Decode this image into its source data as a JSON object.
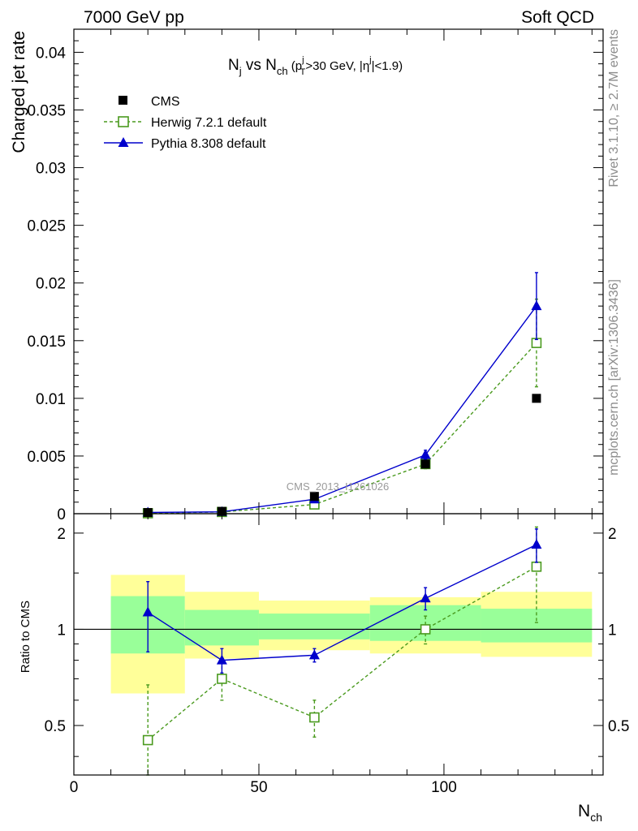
{
  "header": {
    "energy_label": "7000 GeV pp",
    "process_label": "Soft QCD"
  },
  "side_labels": {
    "rivet": "Rivet 3.1.10, ≥ 2.7M events",
    "mcplots": "mcplots.cern.ch [arXiv:1306.3436]"
  },
  "watermark": "CMS_2013_I1261026",
  "colors": {
    "cms": "#000000",
    "herwig": "#4a9a1e",
    "pythia": "#0000cc",
    "band_inner": "#99ff99",
    "band_outer": "#ffff99"
  },
  "chart_data": [
    {
      "type": "scatter",
      "title_parts": {
        "main_a": "N",
        "main_a_sub": "j",
        "main_b": " vs N",
        "main_b_sub": "ch",
        "cut_p": " (p",
        "cut_p_sup": "j",
        "cut_p_sub": "T",
        "cut_p_rest": ">30 GeV, |η",
        "cut_eta_sup": "j",
        "cut_eta_rest": "|<1.9)"
      },
      "ylabel": "Charged jet rate",
      "xlim": [
        0,
        143
      ],
      "ylim": [
        0,
        0.042
      ],
      "y_ticks": [
        "0",
        "0.005",
        "0.01",
        "0.015",
        "0.02",
        "0.025",
        "0.03",
        "0.035",
        "0.04"
      ],
      "y_tick_values": [
        0,
        0.005,
        0.01,
        0.015,
        0.02,
        0.025,
        0.03,
        0.035,
        0.04
      ],
      "legend_position": "top-left",
      "series": [
        {
          "name": "CMS",
          "style": "square-filled",
          "x": [
            20,
            40,
            65,
            95,
            125
          ],
          "y": [
            0.0001,
            0.0002,
            0.0015,
            0.0043,
            0.01
          ],
          "err": [
            0,
            0,
            0,
            0,
            0
          ]
        },
        {
          "name": "Herwig 7.2.1 default",
          "style": "square-open-dashed",
          "x": [
            20,
            40,
            65,
            95,
            125
          ],
          "y": [
            4e-05,
            0.00015,
            0.0008,
            0.0043,
            0.0148
          ],
          "err": [
            2e-05,
            3e-05,
            0.0001,
            0.0004,
            0.0038
          ]
        },
        {
          "name": "Pythia 8.308 default",
          "style": "triangle-solid",
          "x": [
            20,
            40,
            65,
            95,
            125
          ],
          "y": [
            0.00011,
            0.00016,
            0.00125,
            0.0051,
            0.018
          ],
          "err": [
            3e-05,
            3e-05,
            7e-05,
            0.0004,
            0.0029
          ]
        }
      ]
    },
    {
      "type": "scatter",
      "ylabel": "Ratio to CMS",
      "xlabel_main": "N",
      "xlabel_sub": "ch",
      "xlim": [
        0,
        143
      ],
      "ylim": [
        0.35,
        2.3
      ],
      "y_ticks": [
        "0.5",
        "1",
        "2"
      ],
      "y_tick_values": [
        0.5,
        1,
        2
      ],
      "x_ticks": [
        "0",
        "50",
        "100"
      ],
      "x_tick_values": [
        0,
        50,
        100
      ],
      "reference_line": 1,
      "bands": [
        {
          "x0": 10,
          "x1": 30,
          "outer": [
            0.63,
            1.48
          ],
          "inner": [
            0.84,
            1.27
          ]
        },
        {
          "x0": 30,
          "x1": 50,
          "outer": [
            0.81,
            1.31
          ],
          "inner": [
            0.89,
            1.15
          ]
        },
        {
          "x0": 50,
          "x1": 80,
          "outer": [
            0.86,
            1.23
          ],
          "inner": [
            0.93,
            1.12
          ]
        },
        {
          "x0": 80,
          "x1": 110,
          "outer": [
            0.84,
            1.26
          ],
          "inner": [
            0.92,
            1.19
          ]
        },
        {
          "x0": 110,
          "x1": 140,
          "outer": [
            0.82,
            1.31
          ],
          "inner": [
            0.91,
            1.16
          ]
        }
      ],
      "series": [
        {
          "name": "Herwig 7.2.1 default",
          "style": "square-open-dashed",
          "x": [
            20,
            40,
            65,
            95,
            125
          ],
          "y": [
            0.45,
            0.7,
            0.53,
            1.0,
            1.57
          ],
          "err": [
            0.22,
            0.1,
            0.07,
            0.1,
            0.52
          ]
        },
        {
          "name": "Pythia 8.308 default",
          "style": "triangle-solid",
          "x": [
            20,
            40,
            65,
            95,
            125
          ],
          "y": [
            1.13,
            0.8,
            0.83,
            1.25,
            1.84
          ],
          "err": [
            0.28,
            0.07,
            0.04,
            0.1,
            0.22
          ]
        }
      ]
    }
  ]
}
